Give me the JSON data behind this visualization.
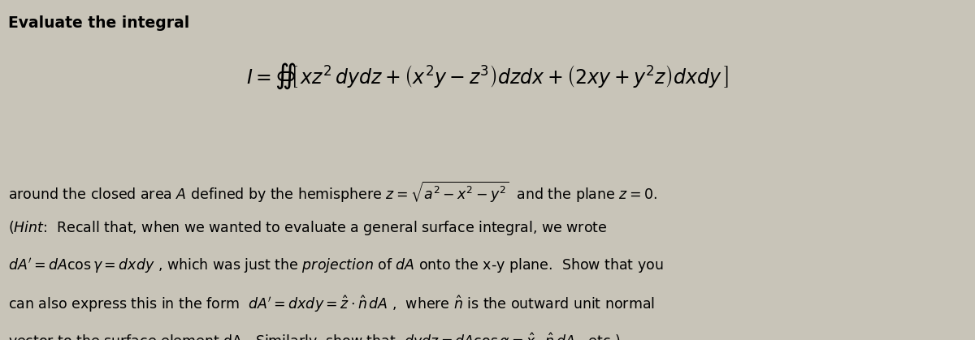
{
  "background_color": "#c8c4b8",
  "fig_width": 12.0,
  "fig_height": 4.19,
  "dpi": 100,
  "title_text": "Evaluate the integral",
  "title_fontsize": 13.5,
  "title_fontweight": "bold",
  "integral_fontsize": 17,
  "body_fontsize": 12.5,
  "line_texts": [
    "around the closed area $A$ defined by the hemisphere $z = \\sqrt{a^2 - x^2 - y^2}$  and the plane $z = 0$.",
    "$(Hint$:  Recall that, when we wanted to evaluate a general surface integral, we wrote",
    "$dA' = dA\\cos\\gamma = dxdy$ , which was just the $projection$ of $dA$ onto the x-y plane.  Show that you",
    "can also express this in the form  $dA' = dxdy = \\hat{z}\\cdot\\hat{n}\\,dA$ ,  where $\\hat{n}$ is the outward unit normal",
    "vector to the surface element dA.  Similarly, show that  $dydz = dA\\cos\\alpha = \\hat{x}\\cdot\\hat{n}\\,dA$ , etc.)"
  ]
}
